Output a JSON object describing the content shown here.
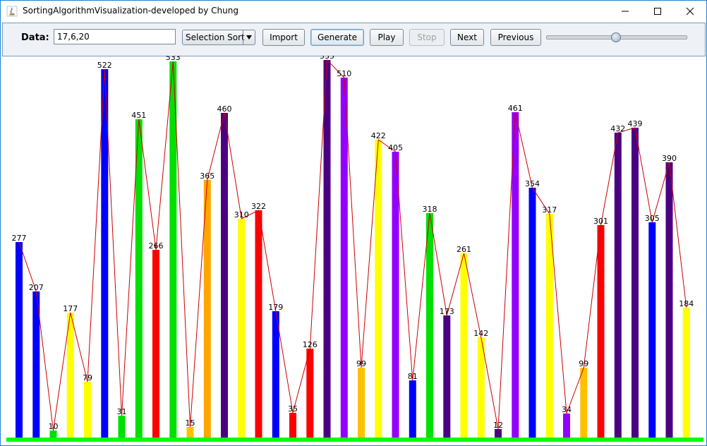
{
  "window": {
    "title": "SortingAlgorithmVisualization-developed by Chung",
    "minimize_icon": "minimize-icon",
    "maximize_icon": "maximize-icon",
    "close_icon": "close-icon"
  },
  "toolbar": {
    "data_label": "Data:",
    "data_value": "17,6,20",
    "algorithm_selected": "Selection Sort",
    "import_label": "Import",
    "generate_label": "Generate",
    "play_label": "Play",
    "stop_label": "Stop",
    "next_label": "Next",
    "previous_label": "Previous",
    "speed_slider_fraction": 0.5
  },
  "chart_data": {
    "type": "bar",
    "values": [
      277,
      207,
      10,
      177,
      79,
      522,
      31,
      451,
      266,
      533,
      15,
      365,
      460,
      310,
      322,
      179,
      35,
      126,
      535,
      510,
      99,
      422,
      405,
      81,
      318,
      173,
      261,
      142,
      12,
      461,
      354,
      317,
      34,
      99,
      301,
      432,
      439,
      305,
      390,
      184
    ],
    "colors": [
      "#0000ff",
      "#0000ff",
      "#00e000",
      "#ffff00",
      "#ffff00",
      "#0000ff",
      "#00e000",
      "#00e000",
      "#ff0000",
      "#00e000",
      "#ffc000",
      "#ffa500",
      "#4b0082",
      "#ffff00",
      "#ff0000",
      "#0000ff",
      "#ff0000",
      "#ff0000",
      "#4b0082",
      "#9400ff",
      "#ffc000",
      "#ffff00",
      "#9400ff",
      "#0000ff",
      "#00e000",
      "#4b0082",
      "#ffff00",
      "#ffff00",
      "#4b0082",
      "#9400ff",
      "#0000ff",
      "#ffff00",
      "#9400ff",
      "#ffc000",
      "#ff0000",
      "#4b0082",
      "#4b0082",
      "#0000ff",
      "#4b0082",
      "#ffff00"
    ],
    "connector_color": "#cc0000",
    "baseline_color": "#00ff00"
  }
}
